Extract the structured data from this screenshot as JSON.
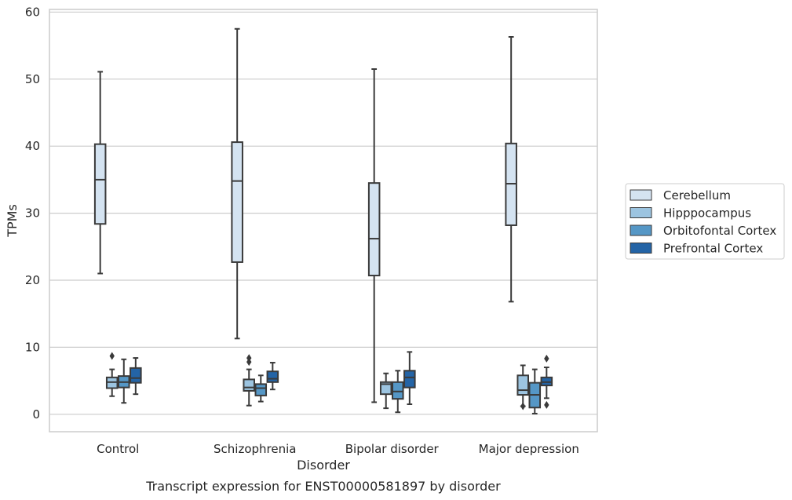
{
  "caption": "Transcript expression for ENST00000581897 by disorder",
  "chart_data": {
    "type": "box",
    "title": "",
    "xlabel": "Disorder",
    "ylabel": "TPMs",
    "ylim": [
      -2.6,
      60.4
    ],
    "yticks": [
      0,
      10,
      20,
      30,
      40,
      50,
      60
    ],
    "grid": "horizontal",
    "legend_position": "right",
    "categories": [
      "Control",
      "Schizophrenia",
      "Bipolar disorder",
      "Major depression"
    ],
    "series": [
      {
        "name": "Cerebellum",
        "color": "#d4e3f1",
        "boxes": [
          {
            "whislo": 21.0,
            "q1": 28.4,
            "med": 35.0,
            "q3": 40.3,
            "whishi": 51.1,
            "fliers": []
          },
          {
            "whislo": 11.3,
            "q1": 22.7,
            "med": 34.8,
            "q3": 40.6,
            "whishi": 57.5,
            "fliers": []
          },
          {
            "whislo": 1.8,
            "q1": 20.7,
            "med": 26.2,
            "q3": 34.5,
            "whishi": 51.5,
            "fliers": []
          },
          {
            "whislo": 16.8,
            "q1": 28.2,
            "med": 34.4,
            "q3": 40.4,
            "whishi": 56.3,
            "fliers": []
          }
        ]
      },
      {
        "name": "Hipppocampus",
        "color": "#9cc4e0",
        "boxes": [
          {
            "whislo": 2.7,
            "q1": 3.9,
            "med": 4.8,
            "q3": 5.5,
            "whishi": 6.7,
            "fliers": [
              8.7
            ]
          },
          {
            "whislo": 1.3,
            "q1": 3.5,
            "med": 4.0,
            "q3": 5.2,
            "whishi": 6.7,
            "fliers": [
              7.8,
              8.4
            ]
          },
          {
            "whislo": 0.9,
            "q1": 3.0,
            "med": 4.5,
            "q3": 4.8,
            "whishi": 6.1,
            "fliers": []
          },
          {
            "whislo": 1.2,
            "q1": 2.9,
            "med": 3.6,
            "q3": 5.8,
            "whishi": 7.3,
            "fliers": [
              1.2
            ]
          }
        ]
      },
      {
        "name": "Orbitofontal Cortex",
        "color": "#5597c6",
        "boxes": [
          {
            "whislo": 1.7,
            "q1": 4.0,
            "med": 4.8,
            "q3": 5.7,
            "whishi": 8.2,
            "fliers": []
          },
          {
            "whislo": 1.9,
            "q1": 2.8,
            "med": 3.9,
            "q3": 4.5,
            "whishi": 5.8,
            "fliers": []
          },
          {
            "whislo": 0.3,
            "q1": 2.3,
            "med": 3.4,
            "q3": 4.8,
            "whishi": 6.5,
            "fliers": []
          },
          {
            "whislo": 0.1,
            "q1": 1.0,
            "med": 2.9,
            "q3": 4.7,
            "whishi": 6.7,
            "fliers": []
          }
        ]
      },
      {
        "name": "Prefrontal Cortex",
        "color": "#2464a6",
        "boxes": [
          {
            "whislo": 3.0,
            "q1": 4.7,
            "med": 5.4,
            "q3": 6.9,
            "whishi": 8.4,
            "fliers": []
          },
          {
            "whislo": 3.7,
            "q1": 4.8,
            "med": 5.3,
            "q3": 6.4,
            "whishi": 7.7,
            "fliers": []
          },
          {
            "whislo": 1.5,
            "q1": 4.0,
            "med": 5.5,
            "q3": 6.5,
            "whishi": 9.3,
            "fliers": []
          },
          {
            "whislo": 2.4,
            "q1": 4.3,
            "med": 4.8,
            "q3": 5.5,
            "whishi": 7.0,
            "fliers": [
              8.3,
              1.4
            ]
          }
        ]
      }
    ]
  }
}
